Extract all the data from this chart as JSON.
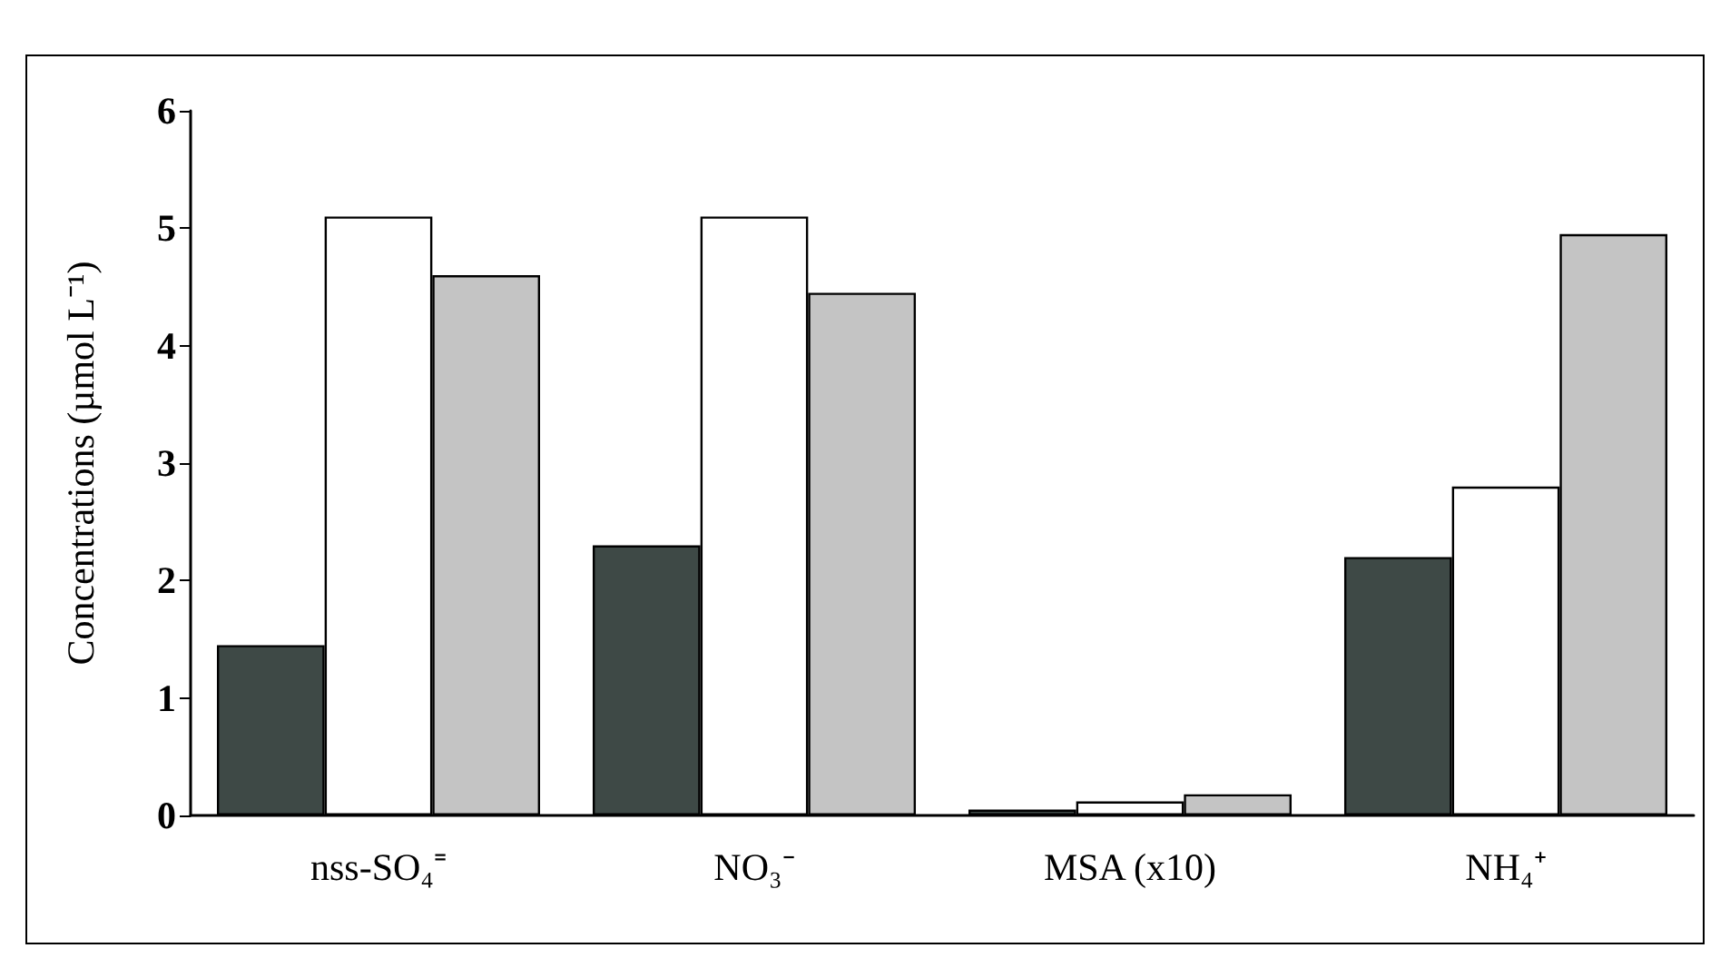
{
  "chart_data": {
    "type": "bar",
    "ylabel": "Concentrations (µmol L⁻¹)",
    "categories": [
      "nss-SO₄⁼",
      "NO₃⁻",
      "MSA (x10)",
      "NH₄⁺"
    ],
    "series": [
      {
        "color": "#3e4946",
        "values": [
          1.45,
          2.3,
          0.05,
          2.2
        ]
      },
      {
        "color": "#ffffff",
        "values": [
          5.1,
          5.1,
          0.12,
          2.8
        ]
      },
      {
        "color": "#c4c4c4",
        "values": [
          4.6,
          4.45,
          0.18,
          4.95
        ]
      }
    ],
    "ylim": [
      0,
      6
    ],
    "yticks": [
      0,
      1,
      2,
      3,
      4,
      5,
      6
    ]
  }
}
